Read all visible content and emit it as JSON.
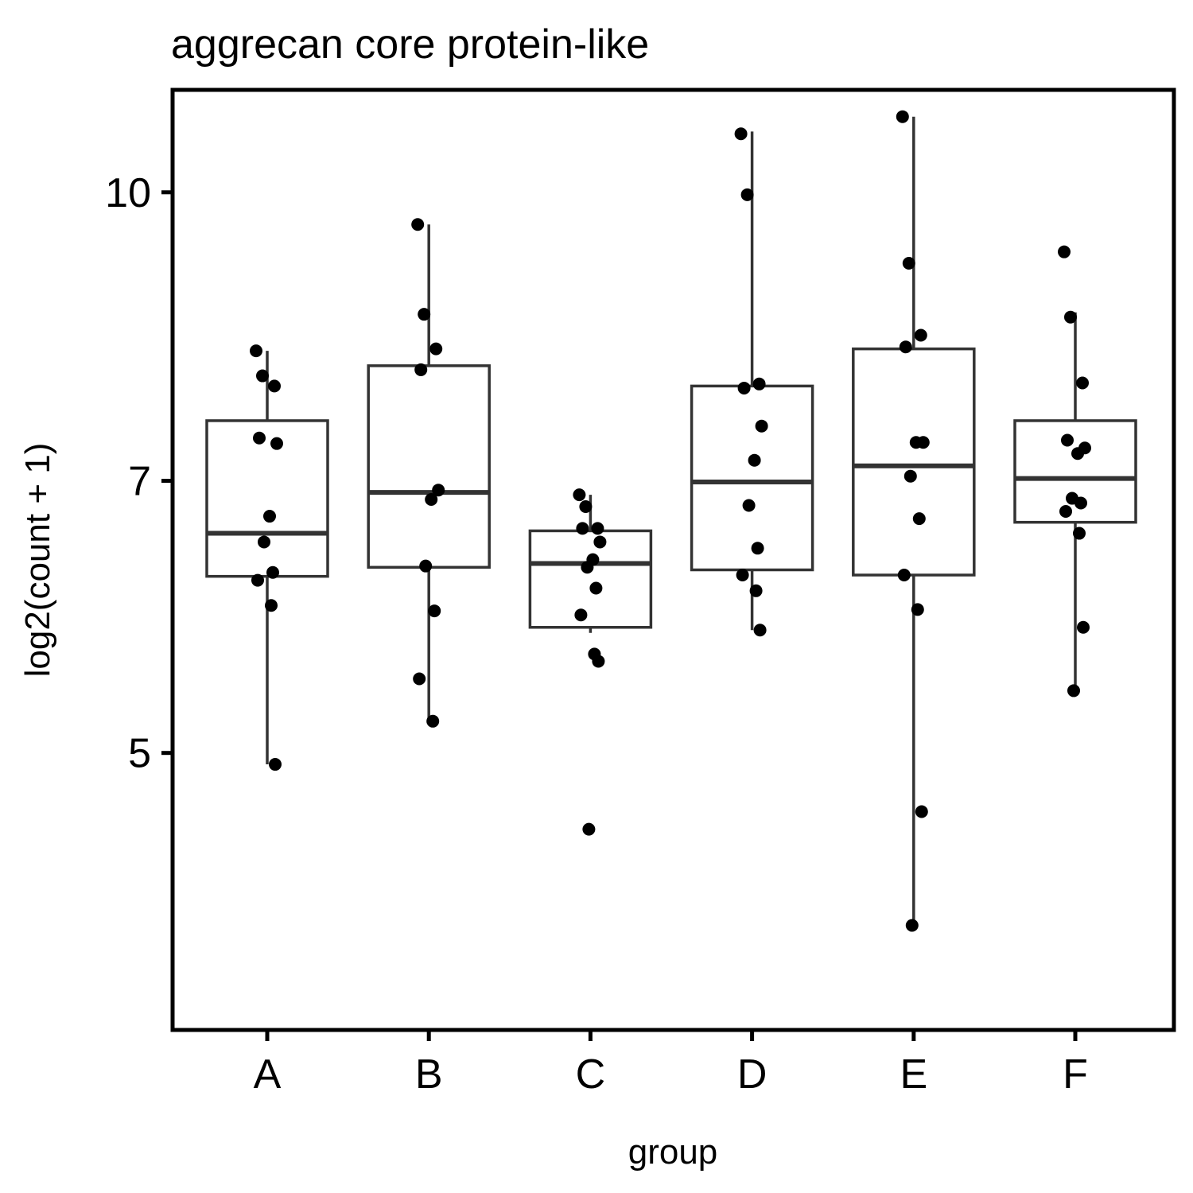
{
  "chart_data": {
    "type": "box",
    "title": "aggrecan core protein-like",
    "xlabel": "group",
    "ylabel": "log2(count + 1)",
    "scale": "log2",
    "ylim": [
      3.55,
      11.35
    ],
    "yticks": [
      5,
      7,
      10
    ],
    "grid": false,
    "legend": "none",
    "categories": [
      "A",
      "B",
      "C",
      "D",
      "E",
      "F"
    ],
    "boxes": [
      {
        "group": "A",
        "min": 4.93,
        "q1": 6.22,
        "median": 6.56,
        "q3": 7.54,
        "max": 8.22
      },
      {
        "group": "B",
        "min": 5.2,
        "q1": 6.29,
        "median": 6.9,
        "q3": 8.07,
        "max": 9.61
      },
      {
        "group": "C",
        "min": 5.8,
        "q1": 5.84,
        "median": 6.32,
        "q3": 6.58,
        "max": 6.88
      },
      {
        "group": "D",
        "min": 5.82,
        "q1": 6.27,
        "median": 6.99,
        "q3": 7.87,
        "max": 10.78
      },
      {
        "group": "E",
        "min": 4.04,
        "q1": 6.23,
        "median": 7.13,
        "q3": 8.24,
        "max": 10.98
      },
      {
        "group": "F",
        "min": 5.4,
        "q1": 6.65,
        "median": 7.02,
        "q3": 7.54,
        "max": 8.62
      }
    ],
    "points": [
      {
        "group": "A",
        "y": [
          8.22,
          7.97,
          7.87,
          7.38,
          7.33,
          6.7,
          6.49,
          6.25,
          6.19,
          6.0,
          4.93
        ]
      },
      {
        "group": "B",
        "y": [
          9.61,
          8.6,
          8.24,
          8.03,
          6.92,
          6.84,
          6.3,
          5.96,
          5.48,
          5.2
        ]
      },
      {
        "group": "C",
        "y": [
          6.88,
          6.78,
          6.6,
          6.6,
          6.49,
          6.35,
          6.29,
          6.13,
          5.93,
          5.65,
          5.6,
          4.55
        ]
      },
      {
        "group": "D",
        "y": [
          10.75,
          9.97,
          7.89,
          7.85,
          7.49,
          7.18,
          6.79,
          6.44,
          6.23,
          6.11,
          5.82
        ]
      },
      {
        "group": "E",
        "y": [
          10.98,
          9.16,
          8.38,
          8.26,
          7.34,
          7.34,
          7.04,
          6.68,
          6.23,
          5.97,
          4.65,
          4.04
        ]
      },
      {
        "group": "F",
        "y": [
          9.29,
          8.57,
          7.9,
          7.36,
          7.29,
          7.24,
          6.85,
          6.81,
          6.74,
          6.56,
          5.84,
          5.4
        ]
      }
    ]
  }
}
